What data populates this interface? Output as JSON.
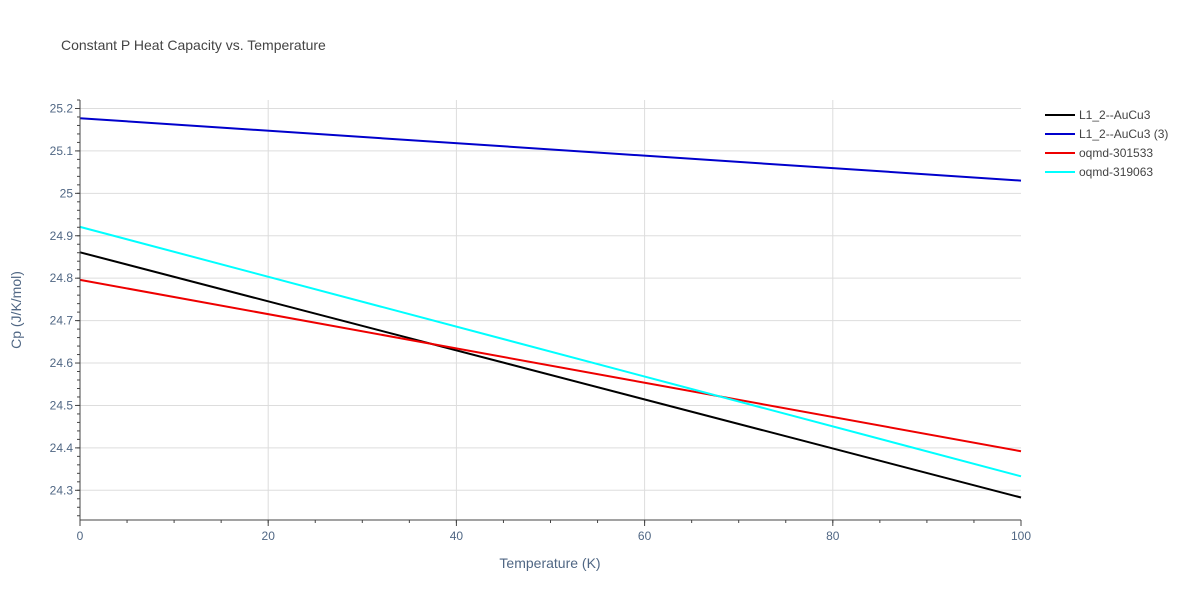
{
  "chart_data": {
    "type": "line",
    "title": "Constant P Heat Capacity vs. Temperature",
    "xlabel": "Temperature (K)",
    "ylabel": "Cp (J/K/mol)",
    "xlim": [
      0,
      100
    ],
    "ylim": [
      24.23,
      25.22
    ],
    "x_ticks": [
      0,
      20,
      40,
      60,
      80,
      100
    ],
    "x_tick_labels": [
      "0",
      "20",
      "40",
      "60",
      "80",
      "100"
    ],
    "y_ticks": [
      24.3,
      24.4,
      24.5,
      24.6,
      24.7,
      24.8,
      24.9,
      25.0,
      25.1,
      25.2
    ],
    "y_tick_labels": [
      "24.3",
      "24.4",
      "24.5",
      "24.6",
      "24.7",
      "24.8",
      "24.9",
      "25",
      "25.1",
      "25.2"
    ],
    "grid": true,
    "legend_position": "top-right",
    "series": [
      {
        "name": "L1_2--AuCu3",
        "color": "#000000",
        "x": [
          0,
          100
        ],
        "values": [
          24.861,
          24.283
        ]
      },
      {
        "name": "L1_2--AuCu3 (3)",
        "color": "#0000cc",
        "x": [
          0,
          100
        ],
        "values": [
          25.177,
          25.03
        ]
      },
      {
        "name": "oqmd-301533",
        "color": "#ee0000",
        "x": [
          0,
          100
        ],
        "values": [
          24.796,
          24.392
        ]
      },
      {
        "name": "oqmd-319063",
        "color": "#00ffff",
        "x": [
          0,
          100
        ],
        "values": [
          24.921,
          24.333
        ]
      }
    ]
  }
}
